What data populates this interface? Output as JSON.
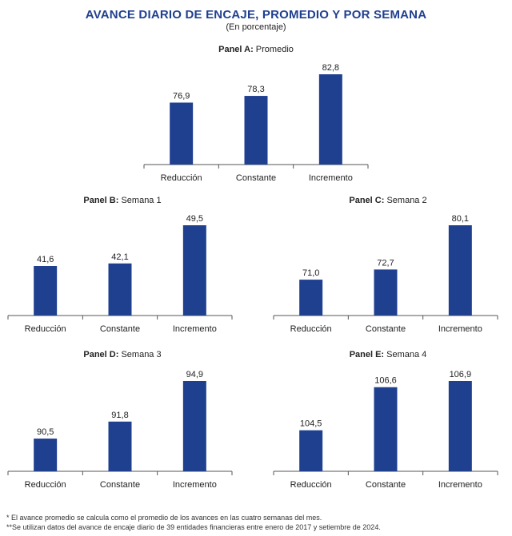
{
  "header": {
    "title": "AVANCE DIARIO DE ENCAJE, PROMEDIO Y POR SEMANA",
    "subtitle": "(En porcentaje)"
  },
  "colors": {
    "bar": "#1f3f8f",
    "title": "#1f3f8f",
    "axis": "#555555"
  },
  "chart_data": [
    {
      "type": "bar",
      "panel_label": "Panel A:",
      "panel_name": "Promedio",
      "categories": [
        "Reducción",
        "Constante",
        "Incremento"
      ],
      "values": [
        76.9,
        78.3,
        82.8
      ],
      "value_labels": [
        "76,9",
        "78,3",
        "82,8"
      ]
    },
    {
      "type": "bar",
      "panel_label": "Panel B:",
      "panel_name": "Semana 1",
      "categories": [
        "Reducción",
        "Constante",
        "Incremento"
      ],
      "values": [
        41.6,
        42.1,
        49.5
      ],
      "value_labels": [
        "41,6",
        "42,1",
        "49,5"
      ]
    },
    {
      "type": "bar",
      "panel_label": "Panel C:",
      "panel_name": "Semana 2",
      "categories": [
        "Reducción",
        "Constante",
        "Incremento"
      ],
      "values": [
        71.0,
        72.7,
        80.1
      ],
      "value_labels": [
        "71,0",
        "72,7",
        "80,1"
      ]
    },
    {
      "type": "bar",
      "panel_label": "Panel D:",
      "panel_name": "Semana 3",
      "categories": [
        "Reducción",
        "Constante",
        "Incremento"
      ],
      "values": [
        90.5,
        91.8,
        94.9
      ],
      "value_labels": [
        "90,5",
        "91,8",
        "94,9"
      ]
    },
    {
      "type": "bar",
      "panel_label": "Panel E:",
      "panel_name": "Semana 4",
      "categories": [
        "Reducción",
        "Constante",
        "Incremento"
      ],
      "values": [
        104.5,
        106.6,
        106.9
      ],
      "value_labels": [
        "104,5",
        "106,6",
        "106,9"
      ]
    }
  ],
  "footnotes": [
    "* El avance promedio se calcula como el promedio de los avances en las cuatro semanas del mes.",
    "**Se utilizan datos del avance de encaje diario de 39 entidades financieras entre enero de 2017 y setiembre de 2024."
  ]
}
